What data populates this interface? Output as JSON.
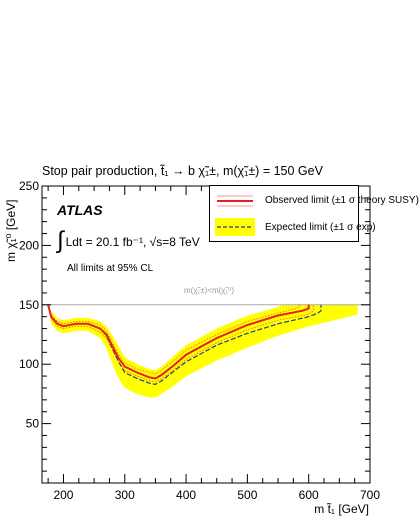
{
  "title": "Stop pair production, t̃₁ → b χ̃₁±, m(χ̃₁±) = 150 GeV",
  "experiment": "ATLAS",
  "luminosity_text": "Ldt = 20.1 fb⁻¹,  √s=8 TeV",
  "cl_text": "All limits at 95% CL",
  "diagonal_label": "m(χ̃₁±)<m(χ̃₁⁰)",
  "legend": {
    "observed": "Observed limit (±1 σ theory SUSY)",
    "expected": "Expected limit (±1 σ exp)"
  },
  "colors": {
    "observed": "#e8201e",
    "observed_band": "#e8201e",
    "expected": "#243e8c",
    "expected_band": "#ffff00",
    "diagonal": "#aaaaaa"
  },
  "chart_data": {
    "type": "line",
    "xlabel": "m t̃₁ [GeV]",
    "ylabel": "m χ̃₁⁰ [GeV]",
    "xlim": [
      165,
      700
    ],
    "ylim": [
      0,
      250
    ],
    "xticks": [
      200,
      300,
      400,
      500,
      600,
      700
    ],
    "yticks": [
      50,
      100,
      150,
      200,
      250
    ],
    "grid": false,
    "legend_position": "top-right",
    "reference_line": {
      "y": 150
    },
    "series": [
      {
        "name": "Observed limit",
        "x": [
          175,
          180,
          190,
          200,
          210,
          220,
          240,
          260,
          270,
          280,
          290,
          300,
          320,
          340,
          350,
          360,
          380,
          400,
          450,
          500,
          550,
          590,
          600,
          600
        ],
        "y": [
          150,
          140,
          134,
          132,
          133,
          134,
          134,
          130,
          125,
          115,
          105,
          98,
          93,
          89,
          88,
          91,
          99,
          108,
          122,
          133,
          141,
          145,
          147,
          150
        ]
      },
      {
        "name": "Observed limit +1σ theory",
        "x": [
          175,
          180,
          190,
          200,
          210,
          220,
          240,
          260,
          270,
          280,
          290,
          300,
          320,
          340,
          350,
          360,
          380,
          400,
          450,
          500,
          550,
          580,
          585,
          585
        ],
        "y": [
          150,
          141,
          136,
          134,
          135,
          136,
          136,
          133,
          128,
          118,
          108,
          101,
          96,
          93,
          92,
          95,
          103,
          112,
          125,
          136,
          143,
          147,
          149,
          150
        ]
      },
      {
        "name": "Observed limit -1σ theory",
        "x": [
          175,
          180,
          190,
          200,
          210,
          220,
          240,
          260,
          270,
          280,
          290,
          300,
          320,
          340,
          350,
          360,
          380,
          400,
          450,
          500,
          550,
          600,
          608,
          608
        ],
        "y": [
          150,
          138,
          132,
          130,
          131,
          132,
          132,
          127,
          122,
          112,
          102,
          95,
          90,
          86,
          85,
          88,
          95,
          104,
          118,
          129,
          137,
          142,
          145,
          150
        ]
      },
      {
        "name": "Expected limit",
        "x": [
          175,
          180,
          190,
          200,
          210,
          220,
          240,
          260,
          270,
          280,
          290,
          300,
          320,
          340,
          350,
          360,
          380,
          400,
          450,
          500,
          550,
          600,
          615,
          620,
          620
        ],
        "y": [
          150,
          140,
          134,
          132,
          133,
          134,
          134,
          130,
          124,
          113,
          102,
          93,
          88,
          84,
          83,
          86,
          94,
          102,
          116,
          126,
          134,
          140,
          143,
          145,
          150
        ]
      },
      {
        "name": "Expected band upper",
        "x": [
          175,
          180,
          190,
          200,
          210,
          220,
          240,
          260,
          270,
          280,
          290,
          300,
          320,
          340,
          350,
          360,
          380,
          400,
          450,
          500,
          550,
          555,
          555
        ],
        "y": [
          150,
          144,
          139,
          137,
          138,
          139,
          139,
          136,
          132,
          124,
          115,
          106,
          100,
          96,
          95,
          98,
          107,
          116,
          130,
          141,
          148,
          150,
          150
        ]
      },
      {
        "name": "Expected band lower",
        "x": [
          175,
          180,
          190,
          200,
          210,
          220,
          240,
          260,
          270,
          280,
          290,
          300,
          320,
          340,
          350,
          360,
          380,
          400,
          450,
          500,
          550,
          600,
          650,
          680,
          680
        ],
        "y": [
          150,
          134,
          128,
          126,
          127,
          128,
          128,
          122,
          114,
          100,
          88,
          80,
          75,
          72,
          72,
          75,
          82,
          90,
          103,
          114,
          124,
          132,
          138,
          142,
          150
        ]
      }
    ]
  }
}
